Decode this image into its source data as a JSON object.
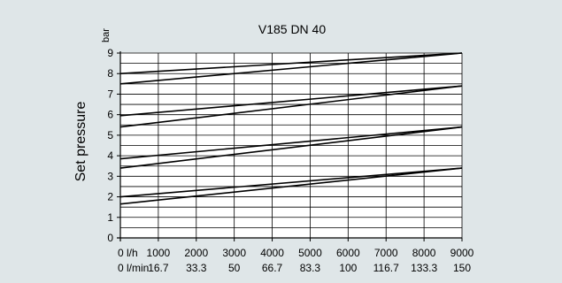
{
  "chart_data": {
    "type": "line",
    "title": "V185 DN 40",
    "ylabel": "Set pressure",
    "yunit": "bar",
    "ylim": [
      0,
      9
    ],
    "yticks": [
      0,
      1,
      2,
      3,
      4,
      5,
      6,
      7,
      8,
      9
    ],
    "ygrid_step": 0.5,
    "xlim": [
      0,
      9000
    ],
    "xticks": [
      0,
      1000,
      2000,
      3000,
      4000,
      5000,
      6000,
      7000,
      8000,
      9000
    ],
    "xtick_labels_lh": [
      "0 l/h",
      "1000",
      "2000",
      "3000",
      "4000",
      "5000",
      "6000",
      "7000",
      "8000",
      "9000"
    ],
    "xtick_labels_lmin": [
      "0 l/min",
      "16.7",
      "33.3",
      "50",
      "66.7",
      "83.3",
      "100",
      "116.7",
      "133.3",
      "150"
    ],
    "grid": true,
    "series": [
      {
        "x": [
          0,
          9000
        ],
        "values": [
          8.0,
          9.0
        ]
      },
      {
        "x": [
          0,
          9000
        ],
        "values": [
          7.5,
          9.0
        ]
      },
      {
        "x": [
          0,
          9000
        ],
        "values": [
          5.95,
          7.4
        ]
      },
      {
        "x": [
          0,
          9000
        ],
        "values": [
          5.4,
          7.4
        ]
      },
      {
        "x": [
          0,
          9000
        ],
        "values": [
          3.85,
          5.4
        ]
      },
      {
        "x": [
          0,
          9000
        ],
        "values": [
          3.4,
          5.4
        ]
      },
      {
        "x": [
          0,
          9000
        ],
        "values": [
          2.0,
          3.4
        ]
      },
      {
        "x": [
          0,
          9000
        ],
        "values": [
          1.65,
          3.4
        ]
      }
    ],
    "colors": {
      "background": "#dfe6e8",
      "plot_area": "#ffffff",
      "lines": "#000000"
    }
  }
}
